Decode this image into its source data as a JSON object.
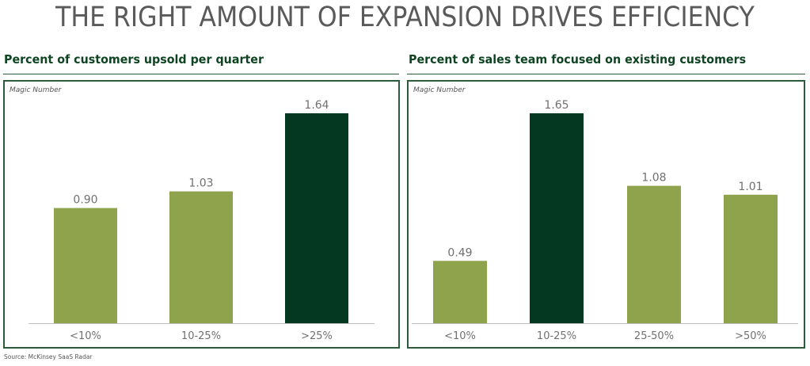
{
  "title": "THE RIGHT AMOUNT OF EXPANSION DRIVES EFFICIENCY",
  "source": "Source: McKinsey SaaS Radar",
  "colors": {
    "highlight": "#043820",
    "normal": "#8fa34d",
    "frame": "#2e5b3b",
    "label": "#707070"
  },
  "chart_data": [
    {
      "type": "bar",
      "title": "Percent of customers upsold per quarter",
      "ylabel": "Magic Number",
      "xlabel": "",
      "categories": [
        "<10%",
        "10-25%",
        ">25%"
      ],
      "values": [
        0.9,
        1.03,
        1.64
      ],
      "value_labels": [
        "0.90",
        "1.03",
        "1.64"
      ],
      "highlight_index": 2,
      "ylim": [
        0,
        1.64
      ],
      "grid": false,
      "legend": "none"
    },
    {
      "type": "bar",
      "title": "Percent of sales team focused on existing customers",
      "ylabel": "Magic Number",
      "xlabel": "",
      "categories": [
        "<10%",
        "10-25%",
        "25-50%",
        ">50%"
      ],
      "values": [
        0.49,
        1.65,
        1.08,
        1.01
      ],
      "value_labels": [
        "0.49",
        "1.65",
        "1.08",
        "1.01"
      ],
      "highlight_index": 1,
      "ylim": [
        0,
        1.65
      ],
      "grid": false,
      "legend": "none"
    }
  ]
}
